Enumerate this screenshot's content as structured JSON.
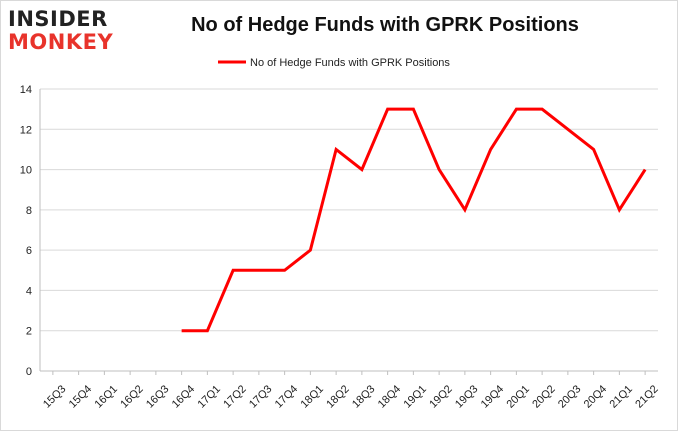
{
  "brand": {
    "line1_a": "INSIDER",
    "line2_a": "MONKEY"
  },
  "colors": {
    "series": "#ff0000",
    "grid": "#d9d9d9",
    "brand_red": "#e8332b"
  },
  "chart_data": {
    "type": "line",
    "title": "No of Hedge Funds with GPRK Positions",
    "xlabel": "",
    "ylabel": "",
    "ylim": [
      0,
      14
    ],
    "yticks": [
      0,
      2,
      4,
      6,
      8,
      10,
      12,
      14
    ],
    "grid": true,
    "legend_position": "top-center",
    "categories": [
      "15Q3",
      "15Q4",
      "16Q1",
      "16Q2",
      "16Q3",
      "16Q4",
      "17Q1",
      "17Q2",
      "17Q3",
      "17Q4",
      "18Q1",
      "18Q2",
      "18Q3",
      "18Q4",
      "19Q1",
      "19Q2",
      "19Q3",
      "19Q4",
      "20Q1",
      "20Q2",
      "20Q3",
      "20Q4",
      "21Q1",
      "21Q2"
    ],
    "series": [
      {
        "name": "No of Hedge Funds with GPRK Positions",
        "values": [
          null,
          null,
          null,
          null,
          null,
          2,
          2,
          5,
          5,
          5,
          6,
          11,
          10,
          13,
          13,
          10,
          8,
          11,
          13,
          13,
          12,
          11,
          8,
          10
        ]
      }
    ]
  }
}
